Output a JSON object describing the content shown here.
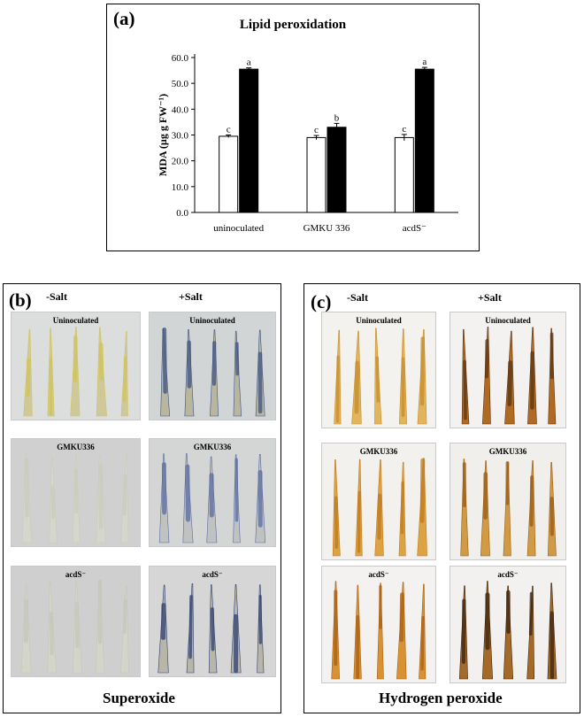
{
  "panel_a": {
    "label": "(a)",
    "chart_data": {
      "type": "bar",
      "title": "Lipid peroxidation",
      "ylabel": "MDA (µg g FW⁻¹)",
      "ylim": [
        0,
        60
      ],
      "yticks": [
        "0.0",
        "10.0",
        "20.0",
        "30.0",
        "40.0",
        "50.0",
        "60.0"
      ],
      "categories": [
        "uninoculated",
        "GMKU 336",
        "acdS⁻"
      ],
      "series": [
        {
          "fill": "#ffffff",
          "values": [
            29.5,
            29.0,
            29.0
          ],
          "errors": [
            0.5,
            0.8,
            1.2
          ],
          "letters": [
            "c",
            "c",
            "c"
          ]
        },
        {
          "fill": "#000000",
          "values": [
            55.5,
            33.0,
            55.5
          ],
          "errors": [
            0.5,
            1.5,
            0.7
          ],
          "letters": [
            "a",
            "b",
            "a"
          ]
        }
      ]
    }
  },
  "panel_b": {
    "label": "(b)",
    "col_left": "-Salt",
    "col_right": "+Salt",
    "footer": "Superoxide",
    "photos": [
      {
        "label": "Uninoculated",
        "bg": "#dcdedd",
        "leaf": "#cfc99a",
        "stain": "#d2c45c"
      },
      {
        "label": "Uninoculated",
        "bg": "#d2d5d6",
        "leaf": "#b9b6a0",
        "stain": "#3e5282"
      },
      {
        "label": "GMKU336",
        "bg": "#d0d0d0",
        "leaf": "#d5d7cc",
        "stain": "#c9ccba"
      },
      {
        "label": "GMKU336",
        "bg": "#d4d5d5",
        "leaf": "#c0c2c2",
        "stain": "#5a6aa0"
      },
      {
        "label": "acdS⁻",
        "bg": "#cfcfcf",
        "leaf": "#d3d5c9",
        "stain": "#c4c8bb"
      },
      {
        "label": "acdS⁻",
        "bg": "#d6d6d6",
        "leaf": "#b8b6a8",
        "stain": "#2f3f72"
      }
    ]
  },
  "panel_c": {
    "label": "(c)",
    "col_left": "-Salt",
    "col_right": "+Salt",
    "footer": "Hydrogen peroxide",
    "photos": [
      {
        "label": "Uninoculated",
        "bg": "#f4f2ef",
        "leaf": "#e1b55c",
        "stain": "#c78d2e"
      },
      {
        "label": "Uninoculated",
        "bg": "#f4f2f0",
        "leaf": "#b06a22",
        "stain": "#5a3414"
      },
      {
        "label": "GMKU336",
        "bg": "#f3f1ee",
        "leaf": "#dda343",
        "stain": "#c07a1e"
      },
      {
        "label": "GMKU336",
        "bg": "#f1efec",
        "leaf": "#d19a45",
        "stain": "#9a5b16"
      },
      {
        "label": "acdS⁻",
        "bg": "#f4f2f0",
        "leaf": "#d99231",
        "stain": "#a86016"
      },
      {
        "label": "acdS⁻",
        "bg": "#f3f1ef",
        "leaf": "#a66a28",
        "stain": "#3a2410"
      }
    ]
  }
}
